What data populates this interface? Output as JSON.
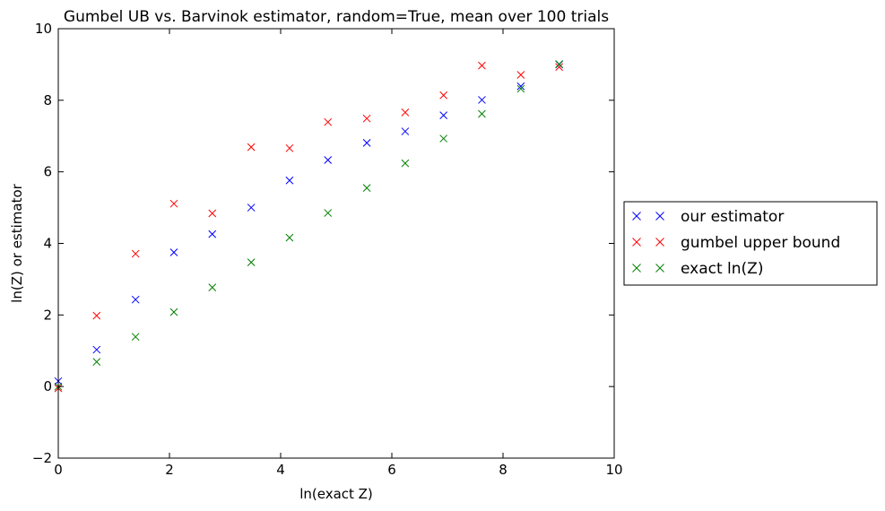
{
  "chart_data": {
    "type": "scatter",
    "title": "Gumbel UB vs. Barvinok estimator, random=True, mean over 100 trials",
    "xlabel": "ln(exact Z)",
    "ylabel": "ln(Z) or estimator",
    "xlim": [
      0,
      10
    ],
    "ylim": [
      -2,
      10
    ],
    "xticks": [
      0,
      2,
      4,
      6,
      8,
      10
    ],
    "yticks": [
      -2,
      0,
      2,
      4,
      6,
      8,
      10
    ],
    "xtick_labels": [
      "0",
      "2",
      "4",
      "6",
      "8",
      "10"
    ],
    "ytick_labels": [
      "−2",
      "0",
      "2",
      "4",
      "6",
      "8",
      "10"
    ],
    "grid": false,
    "legend_placement": "outside-right",
    "x": [
      0.0,
      0.69,
      1.39,
      2.08,
      2.77,
      3.47,
      4.16,
      4.85,
      5.55,
      6.24,
      6.93,
      7.62,
      8.32,
      9.01
    ],
    "series": [
      {
        "name": "our estimator",
        "color": "#0000ff",
        "marker": "x",
        "values": [
          0.15,
          1.03,
          2.43,
          3.75,
          4.26,
          5.0,
          5.76,
          6.33,
          6.81,
          7.13,
          7.58,
          8.01,
          8.39,
          9.0
        ]
      },
      {
        "name": "gumbel upper bound",
        "color": "#ff0000",
        "marker": "x",
        "values": [
          -0.05,
          1.98,
          3.71,
          5.11,
          4.84,
          6.69,
          6.66,
          7.39,
          7.49,
          7.66,
          8.14,
          8.97,
          8.71,
          8.93
        ]
      },
      {
        "name": "exact ln(Z)",
        "color": "#008000",
        "marker": "x",
        "values": [
          0.0,
          0.69,
          1.39,
          2.08,
          2.77,
          3.47,
          4.16,
          4.85,
          5.55,
          6.24,
          6.93,
          7.62,
          8.32,
          9.01
        ]
      }
    ]
  }
}
